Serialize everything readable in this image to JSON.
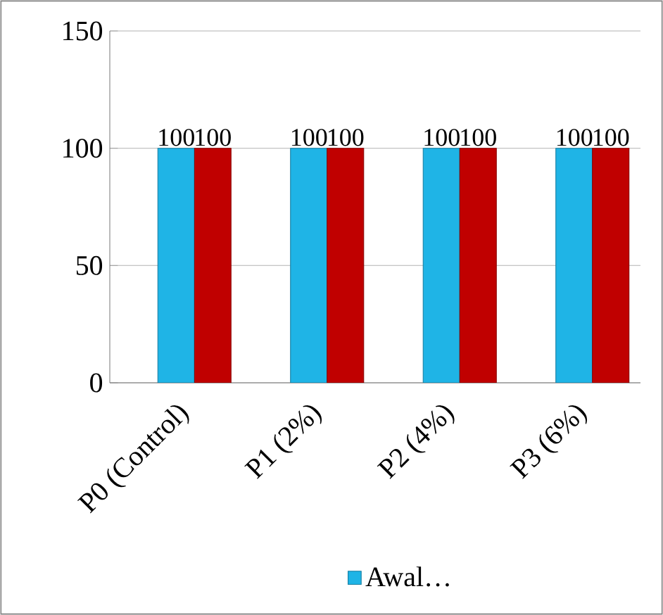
{
  "chart_data": {
    "type": "bar",
    "categories": [
      "P0 (Control)",
      "P1 (2%)",
      "P2 (4%)",
      "P3 (6%)"
    ],
    "series": [
      {
        "name": "Awal…",
        "color": "#1fb4e6",
        "values": [
          100,
          100,
          100,
          100
        ]
      },
      {
        "color": "#c00000",
        "values": [
          100,
          100,
          100,
          100
        ]
      }
    ],
    "ylim": [
      0,
      150
    ],
    "yticks": [
      0,
      50,
      100,
      150
    ],
    "grid": "y",
    "data_labels": true,
    "legend": "bottom"
  }
}
